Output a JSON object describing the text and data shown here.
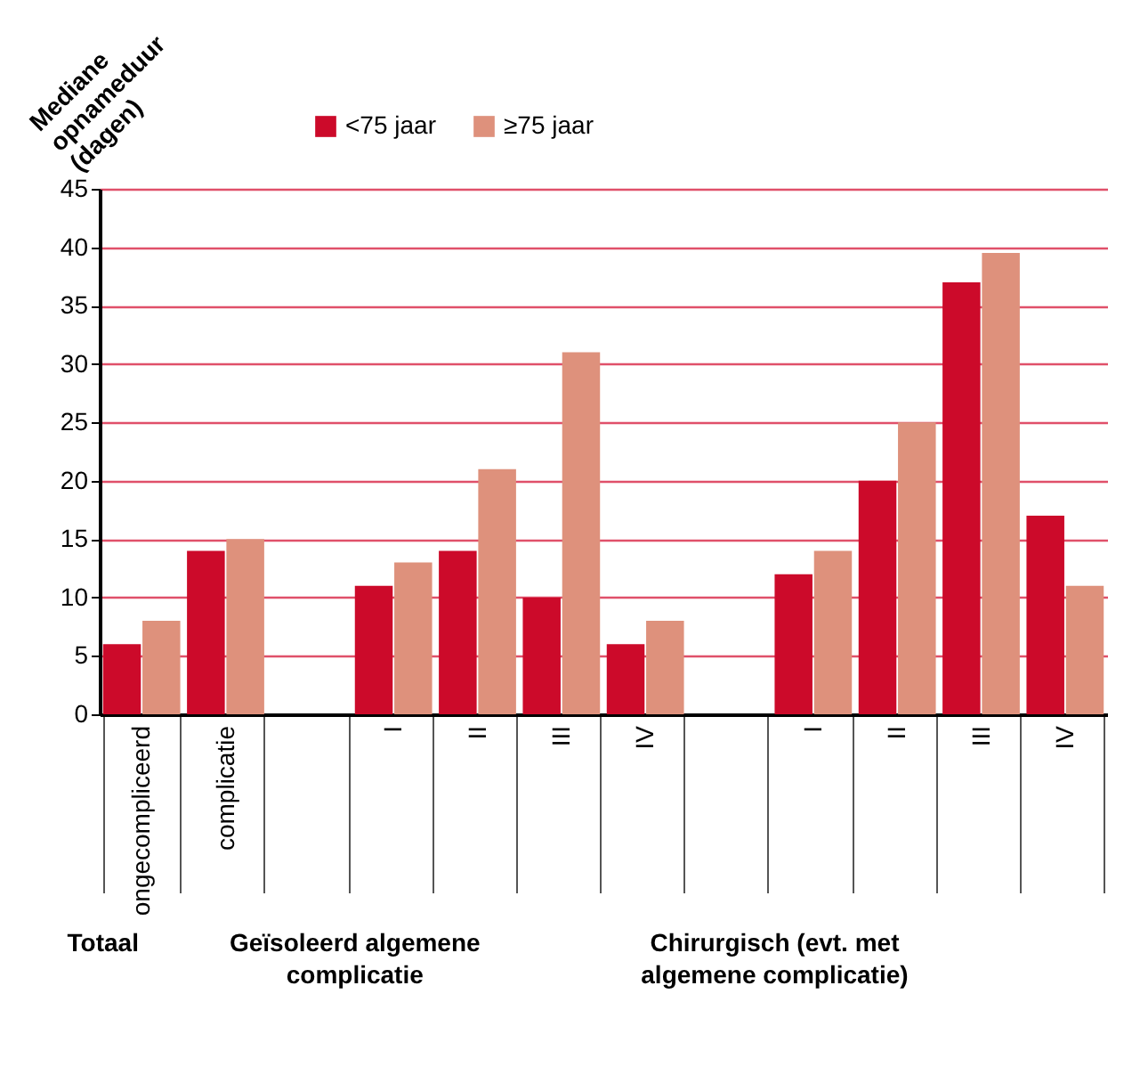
{
  "chart_data": {
    "type": "bar",
    "ylabel": "Mediane opnameduur (dagen)",
    "categories": [
      "ongecompliceerd",
      "complicatie",
      null,
      "I",
      "II",
      "III",
      "IV",
      null,
      "I",
      "II",
      "III",
      "IV"
    ],
    "series": [
      {
        "name": "<75 jaar",
        "color": "#cc0a2a",
        "values": [
          6,
          14,
          null,
          11,
          14,
          10,
          6,
          null,
          12,
          20,
          37,
          17
        ]
      },
      {
        "name": "≥75 jaar",
        "color": "#de917c",
        "values": [
          8,
          15,
          null,
          13,
          21,
          31,
          8,
          null,
          14,
          25,
          39.5,
          11
        ]
      }
    ],
    "ylim": [
      0,
      45
    ],
    "yticks": [
      0,
      5,
      10,
      15,
      20,
      25,
      30,
      35,
      40,
      45
    ],
    "grid": "y",
    "legend": "top",
    "annotations": [
      "Totaal",
      "Geïsoleerd algemene complicatie",
      "Chirurgisch (evt. met algemene complicatie)"
    ]
  }
}
